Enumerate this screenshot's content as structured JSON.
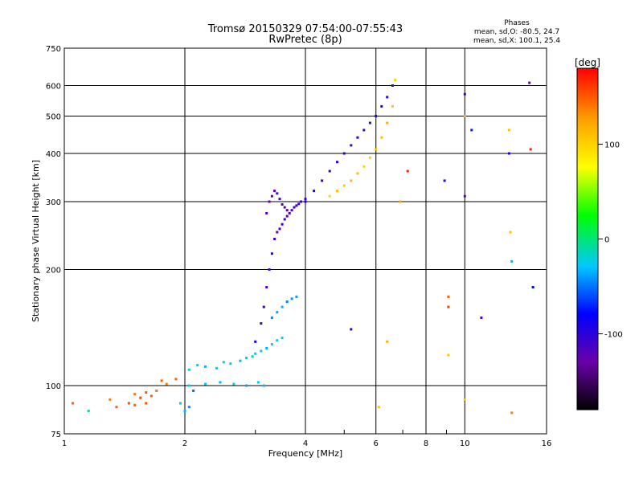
{
  "chart_data": {
    "type": "scatter",
    "title": "Tromsø 20150329 07:54:00-07:55:43",
    "subtitle": "RwPretec (8p)",
    "stats": {
      "heading": "Phases",
      "line1": "mean, sd,O: -80.5, 24.7",
      "line2": "mean, sd,X: 100.1, 25.4"
    },
    "xlabel": "Frequency [MHz]",
    "ylabel": "Stationary phase Virtual Height [km]",
    "x_scale": "log",
    "y_scale": "log",
    "xlim": [
      1,
      16
    ],
    "ylim": [
      75,
      750
    ],
    "x_ticks": [
      1,
      2,
      4,
      6,
      8,
      10,
      16
    ],
    "y_ticks": [
      75,
      100,
      200,
      300,
      400,
      500,
      600,
      750
    ],
    "grid": true,
    "colorbar": {
      "label": "[deg]",
      "range": [
        -180,
        180
      ],
      "ticks": [
        -100,
        0,
        100
      ],
      "colormap": [
        "#000000",
        "#6a00a8",
        "#0000ff",
        "#00c8ff",
        "#00ff00",
        "#ffff00",
        "#ffa000",
        "#ff0000"
      ]
    },
    "series": [
      {
        "x": [
          1.05,
          1.15,
          1.3,
          1.35,
          1.45,
          1.5,
          1.5,
          1.55,
          1.6,
          1.6,
          1.65,
          1.7,
          1.75,
          1.8,
          1.9,
          1.95,
          2.0,
          2.05,
          2.1
        ],
        "y": [
          90,
          86,
          92,
          88,
          90,
          95,
          89,
          93,
          96,
          90,
          94,
          97,
          103,
          101,
          104,
          90,
          86,
          88,
          97
        ],
        "phase": [
          150,
          -10,
          140,
          150,
          155,
          145,
          150,
          160,
          150,
          155,
          150,
          145,
          150,
          140,
          150,
          -20,
          -30,
          -40,
          -50
        ]
      },
      {
        "x": [
          2.05,
          2.15,
          2.25,
          2.4,
          2.5,
          2.6,
          2.75,
          2.85,
          2.95,
          3.0,
          3.1,
          3.2,
          3.3,
          3.4,
          3.5
        ],
        "y": [
          110,
          113,
          112,
          111,
          115,
          114,
          116,
          118,
          119,
          121,
          123,
          125,
          128,
          131,
          133
        ],
        "phase": [
          -20,
          -25,
          -30,
          -20,
          -15,
          -25,
          -30,
          -20,
          -15,
          -25,
          -20,
          -30,
          -25,
          -20,
          -25
        ]
      },
      {
        "x": [
          2.05,
          2.25,
          2.45,
          2.65,
          2.85,
          3.05,
          3.15
        ],
        "y": [
          100,
          101,
          102,
          101,
          100,
          102,
          100
        ],
        "phase": [
          -20,
          -25,
          -30,
          -20,
          -35,
          -25,
          -30
        ]
      },
      {
        "x": [
          3.0,
          3.1,
          3.15,
          3.2,
          3.25,
          3.3,
          3.35,
          3.4,
          3.45,
          3.5,
          3.55,
          3.6,
          3.65,
          3.7,
          3.75,
          3.8,
          3.85,
          3.9,
          4.0
        ],
        "y": [
          130,
          145,
          160,
          180,
          200,
          220,
          240,
          250,
          255,
          262,
          270,
          275,
          280,
          285,
          290,
          293,
          296,
          300,
          305
        ],
        "phase": [
          -90,
          -100,
          -110,
          -120,
          -115,
          -105,
          -110,
          -120,
          -115,
          -110,
          -105,
          -120,
          -110,
          -115,
          -110,
          -100,
          -110,
          -105,
          -110
        ]
      },
      {
        "x": [
          3.2,
          3.25,
          3.3,
          3.35,
          3.4,
          3.45,
          3.5,
          3.55,
          3.6
        ],
        "y": [
          280,
          300,
          310,
          320,
          315,
          305,
          295,
          290,
          285
        ],
        "phase": [
          -120,
          -130,
          -125,
          -120,
          -115,
          -110,
          -120,
          -125,
          -130
        ]
      },
      {
        "x": [
          3.3,
          3.4,
          3.5,
          3.6,
          3.7,
          3.8
        ],
        "y": [
          150,
          155,
          160,
          165,
          168,
          170
        ],
        "phase": [
          -40,
          -35,
          -30,
          -45,
          -40,
          -35
        ]
      },
      {
        "x": [
          4.0,
          4.2,
          4.4,
          4.6,
          4.8,
          5.0,
          5.2,
          5.4,
          5.6,
          5.8,
          6.0,
          6.2,
          6.4,
          6.6
        ],
        "y": [
          300,
          320,
          340,
          360,
          380,
          400,
          420,
          440,
          460,
          480,
          500,
          530,
          560,
          600
        ],
        "phase": [
          -90,
          -100,
          -110,
          -105,
          -100,
          -95,
          -110,
          -100,
          -105,
          -110,
          -100,
          -95,
          -100,
          -105
        ]
      },
      {
        "x": [
          4.6,
          4.8,
          5.0,
          5.2,
          5.4,
          5.6,
          5.8,
          6.0,
          6.2,
          6.4,
          6.6,
          6.7
        ],
        "y": [
          310,
          320,
          330,
          340,
          355,
          370,
          390,
          410,
          440,
          480,
          530,
          620
        ],
        "phase": [
          100,
          110,
          105,
          115,
          110,
          100,
          105,
          110,
          115,
          120,
          110,
          105
        ]
      },
      {
        "x": [
          5.2,
          6.1,
          6.4,
          6.9,
          7.2,
          8.9,
          9.1,
          9.1,
          9.1,
          10.0,
          10.0,
          10.0,
          10.0,
          10.4,
          11.0,
          12.9,
          12.9,
          13.0,
          13.1,
          13.1,
          14.5,
          14.6,
          14.8
        ],
        "y": [
          140,
          88,
          130,
          300,
          360,
          340,
          170,
          160,
          120,
          570,
          310,
          500,
          92,
          460,
          150,
          460,
          400,
          250,
          210,
          85,
          610,
          410,
          180
        ],
        "phase": [
          -100,
          110,
          120,
          130,
          170,
          -100,
          150,
          160,
          110,
          -110,
          -120,
          120,
          110,
          -70,
          -120,
          110,
          -90,
          110,
          -30,
          140,
          -120,
          170,
          -80
        ]
      }
    ]
  }
}
